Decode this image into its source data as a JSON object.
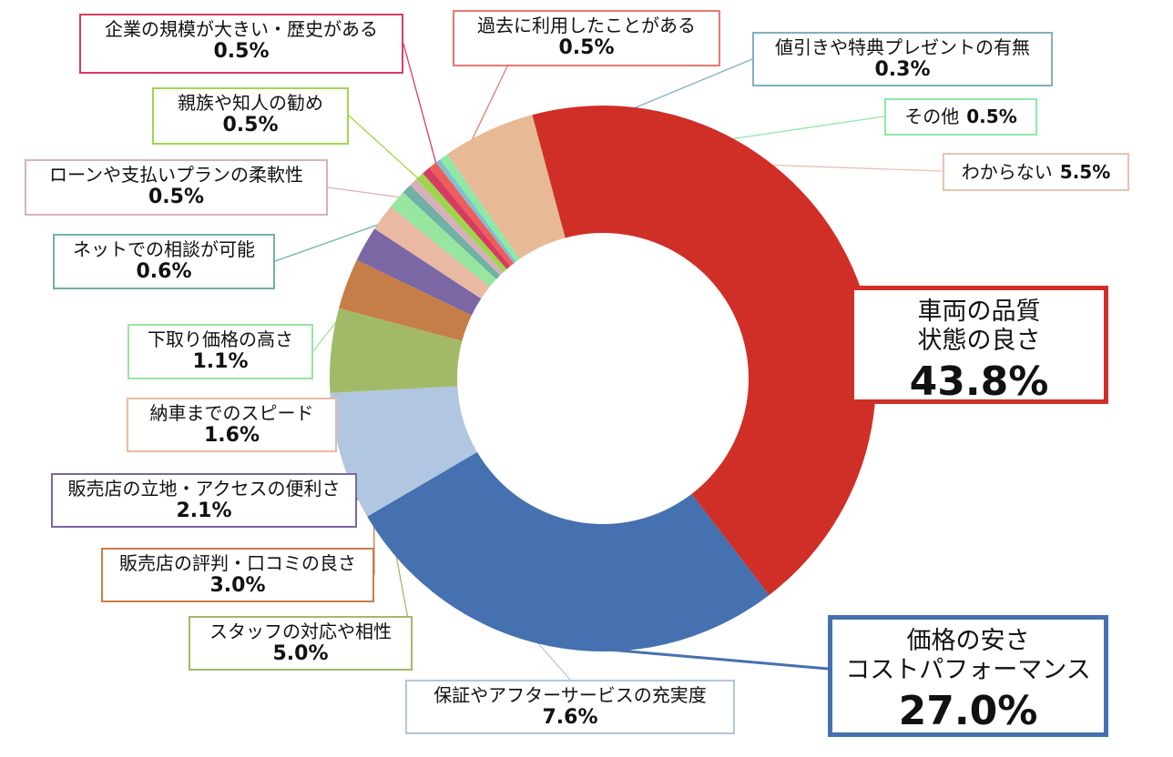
{
  "chart_data": {
    "type": "pie",
    "donut": true,
    "start_angle_deg": -15,
    "direction": "clockwise",
    "slices": [
      {
        "label": "車両の品質\n状態の良さ",
        "value": 43.8,
        "value_label": "43.8%",
        "color": "#cf2f27",
        "label_border": "#cf2f27"
      },
      {
        "label": "価格の安さ\nコストパフォーマンス",
        "value": 27.0,
        "value_label": "27.0%",
        "color": "#4571b0",
        "label_border": "#4571b0"
      },
      {
        "label": "保証やアフターサービスの充実度",
        "value": 7.6,
        "value_label": "7.6%",
        "color": "#b1c6e0",
        "label_border": "#b1c6e0"
      },
      {
        "label": "スタッフの対応や相性",
        "value": 5.0,
        "value_label": "5.0%",
        "color": "#a2ba68",
        "label_border": "#a2ba68"
      },
      {
        "label": "販売店の評判・口コミの良さ",
        "value": 3.0,
        "value_label": "3.0%",
        "color": "#c77d48",
        "label_border": "#c77d48"
      },
      {
        "label": "販売店の立地・アクセスの便利さ",
        "value": 2.1,
        "value_label": "2.1%",
        "color": "#7a67a3",
        "label_border": "#7a67a3"
      },
      {
        "label": "納車までのスピード",
        "value": 1.6,
        "value_label": "1.6%",
        "color": "#e9b9a3",
        "label_border": "#e9b9a3"
      },
      {
        "label": "下取り価格の高さ",
        "value": 1.1,
        "value_label": "1.1%",
        "color": "#96e6a0",
        "label_border": "#96e6a0"
      },
      {
        "label": "ネットでの相談が可能",
        "value": 0.6,
        "value_label": "0.6%",
        "color": "#6fb1a5",
        "label_border": "#6fb1a5"
      },
      {
        "label": "ローンや支払いプランの柔軟性",
        "value": 0.5,
        "value_label": "0.5%",
        "color": "#d7b1b9",
        "label_border": "#d7b1b9"
      },
      {
        "label": "親族や知人の勧め",
        "value": 0.5,
        "value_label": "0.5%",
        "color": "#9ed64b",
        "label_border": "#9ed64b"
      },
      {
        "label": "企業の規模が大きい・歴史がある",
        "value": 0.5,
        "value_label": "0.5%",
        "color": "#d63b64",
        "label_border": "#d63b64"
      },
      {
        "label": "過去に利用したことがある",
        "value": 0.5,
        "value_label": "0.5%",
        "color": "#ef5c5c",
        "label_border": "#e87872"
      },
      {
        "label": "値引きや特典プレゼントの有無",
        "value": 0.3,
        "value_label": "0.3%",
        "color": "#7fbfcf",
        "label_border": "#7fb0c2"
      },
      {
        "label": "その他",
        "value": 0.5,
        "value_label": "0.5%",
        "color": "#8ee9a7",
        "label_border": "#8ee9a7"
      },
      {
        "label": "わからない",
        "value": 5.5,
        "value_label": "5.5%",
        "color": "#e8b995",
        "label_border": "#e8c3ad"
      }
    ]
  }
}
